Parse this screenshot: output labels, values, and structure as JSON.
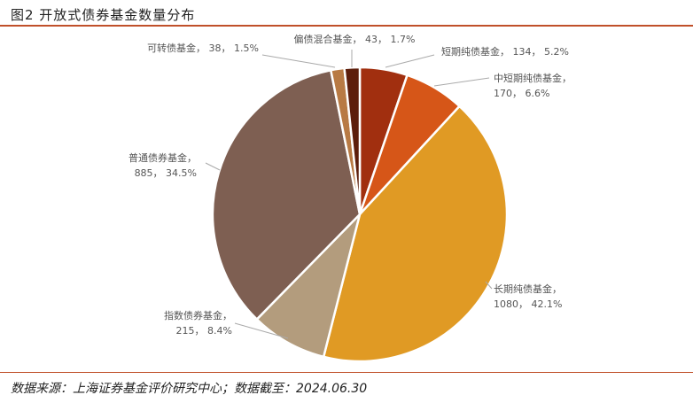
{
  "title": "图2 开放式债券基金数量分布",
  "source": "数据来源：上海证券基金评价研究中心；数据截至：2024.06.30",
  "chart_data": {
    "type": "pie",
    "title": "图2 开放式债券基金数量分布",
    "start": "top, clockwise",
    "slices": [
      {
        "name": "短期纯债基金",
        "value": 134,
        "percent": "5.2%",
        "color": "#a12f0f"
      },
      {
        "name": "中短期纯债基金",
        "value": 170,
        "percent": "6.6%",
        "color": "#d65618"
      },
      {
        "name": "长期纯债基金",
        "value": 1080,
        "percent": "42.1%",
        "color": "#e09a24"
      },
      {
        "name": "指数债券基金",
        "value": 215,
        "percent": "8.4%",
        "color": "#b39c7d"
      },
      {
        "name": "普通债券基金",
        "value": 885,
        "percent": "34.5%",
        "color": "#7e5f52"
      },
      {
        "name": "可转债基金",
        "value": 38,
        "percent": "1.5%",
        "color": "#b87a44"
      },
      {
        "name": "偏债混合基金",
        "value": 43,
        "percent": "1.7%",
        "color": "#5c1d0b"
      }
    ]
  }
}
